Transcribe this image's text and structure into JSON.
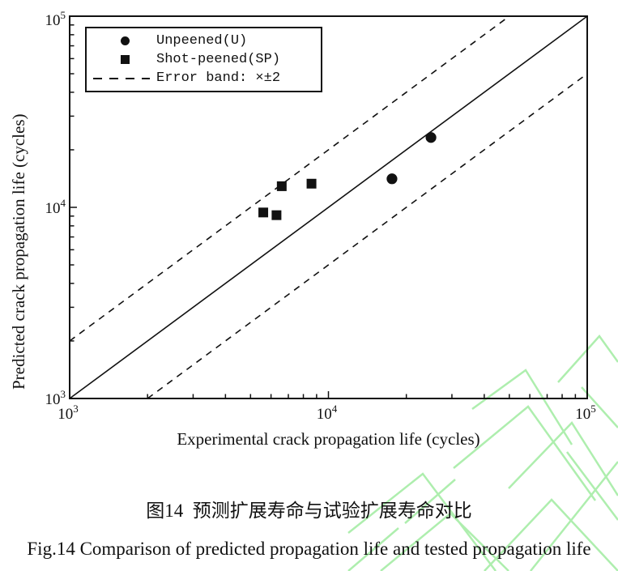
{
  "watermark": {
    "color": "#aeeeae"
  },
  "chart_data": {
    "type": "scatter",
    "title": "",
    "xlabel": "Experimental crack propagation life (cycles)",
    "ylabel": "Predicted crack propagation life (cycles)",
    "x_scale": "log",
    "y_scale": "log",
    "xlim": [
      1000,
      100000
    ],
    "ylim": [
      1000,
      100000
    ],
    "grid": false,
    "legend_position": "top-left",
    "axis_ticks": {
      "x_major": [
        {
          "base": "10",
          "exp": "3",
          "value": 1000
        },
        {
          "base": "10",
          "exp": "4",
          "value": 10000
        },
        {
          "base": "10",
          "exp": "5",
          "value": 100000
        }
      ],
      "y_major": [
        {
          "base": "10",
          "exp": "3",
          "value": 1000
        },
        {
          "base": "10",
          "exp": "4",
          "value": 10000
        },
        {
          "base": "10",
          "exp": "5",
          "value": 100000
        }
      ]
    },
    "series": [
      {
        "name": "Unpeened(U)",
        "marker": "circle",
        "color": "#111111",
        "points": [
          [
            17600,
            14100
          ],
          [
            24900,
            23200
          ]
        ]
      },
      {
        "name": "Shot-peened(SP)",
        "marker": "square",
        "color": "#111111",
        "points": [
          [
            5600,
            9400
          ],
          [
            6300,
            9100
          ],
          [
            6600,
            12900
          ],
          [
            8600,
            13300
          ]
        ]
      }
    ],
    "reference_lines": [
      {
        "name": "identity-line",
        "factor": 1,
        "style": "solid"
      },
      {
        "name": "error-band-upper",
        "factor": 2,
        "style": "dashed"
      },
      {
        "name": "error-band-lower",
        "factor": 0.5,
        "style": "dashed"
      }
    ],
    "legend": {
      "items": [
        {
          "marker": "circle",
          "label": "Unpeened(U)"
        },
        {
          "marker": "square",
          "label": "Shot-peened(SP)"
        },
        {
          "marker": "dashed-line",
          "label": "Error band: ×±2"
        }
      ]
    }
  },
  "captions": {
    "chinese": "图14  预测扩展寿命与试验扩展寿命对比",
    "english": "Fig.14 Comparison of predicted propagation life and tested propagation life"
  }
}
